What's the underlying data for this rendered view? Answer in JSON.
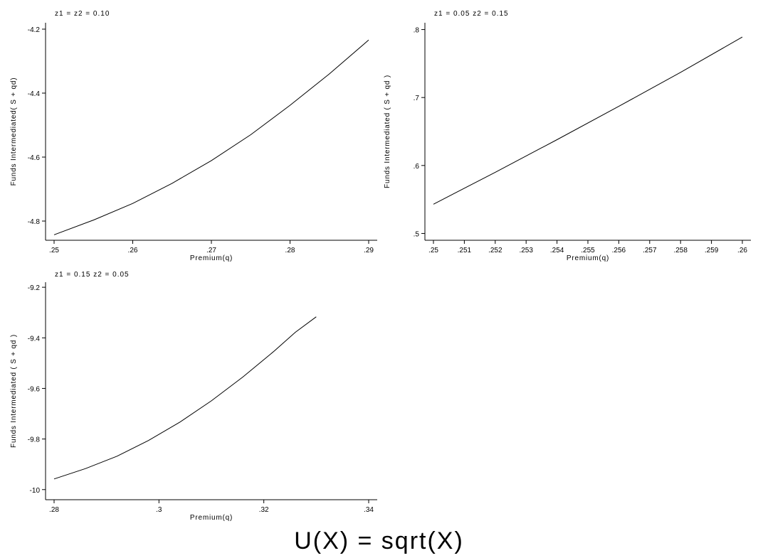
{
  "caption": "U(X) = sqrt(X)",
  "chart_data": [
    {
      "type": "line",
      "title": "z1 =  z2 = 0.10",
      "xlabel": "Premium(q)",
      "ylabel": "Funds Intermediated( S + qd)",
      "xlim": [
        0.25,
        0.29
      ],
      "ylim": [
        -4.86,
        -4.18
      ],
      "xticks": [
        0.25,
        0.26,
        0.27,
        0.28,
        0.29
      ],
      "xtick_labels": [
        ".25",
        ".26",
        ".27",
        ".28",
        ".29"
      ],
      "yticks": [
        -4.8,
        -4.6,
        -4.4,
        -4.2
      ],
      "ytick_labels": [
        "-4.8",
        "-4.6",
        "-4.4",
        "-4.2"
      ],
      "grid": false,
      "x": [
        0.25,
        0.255,
        0.26,
        0.265,
        0.27,
        0.275,
        0.28,
        0.285,
        0.29
      ],
      "y": [
        -4.843,
        -4.797,
        -4.745,
        -4.682,
        -4.611,
        -4.53,
        -4.438,
        -4.34,
        -4.234
      ]
    },
    {
      "type": "line",
      "title": "z1 = 0.05  z2 = 0.15",
      "xlabel": "Premium(q)",
      "ylabel": "Funds Intermediated ( S + qd )",
      "xlim": [
        0.25,
        0.26
      ],
      "ylim": [
        0.49,
        0.81
      ],
      "xticks": [
        0.25,
        0.251,
        0.252,
        0.253,
        0.254,
        0.255,
        0.256,
        0.257,
        0.258,
        0.259,
        0.26
      ],
      "xtick_labels": [
        ".25",
        ".251",
        ".252",
        ".253",
        ".254",
        ".255",
        ".256",
        ".257",
        ".258",
        ".259",
        ".26"
      ],
      "yticks": [
        0.5,
        0.6,
        0.7,
        0.8
      ],
      "ytick_labels": [
        ".5",
        ".6",
        ".7",
        ".8"
      ],
      "grid": false,
      "x": [
        0.25,
        0.252,
        0.254,
        0.256,
        0.258,
        0.26
      ],
      "y": [
        0.543,
        0.59,
        0.638,
        0.687,
        0.737,
        0.789
      ]
    },
    {
      "type": "line",
      "title": "z1 = 0.15  z2 = 0.05",
      "xlabel": "Premium(q)",
      "ylabel": "Funds Intermediated ( S + qd )",
      "xlim": [
        0.28,
        0.34
      ],
      "ylim": [
        -10.04,
        -9.18
      ],
      "xticks": [
        0.28,
        0.3,
        0.32,
        0.34
      ],
      "xtick_labels": [
        ".28",
        ".3",
        ".32",
        ".34"
      ],
      "yticks": [
        -10,
        -9.8,
        -9.6,
        -9.4,
        -9.2
      ],
      "ytick_labels": [
        "-10",
        "-9.8",
        "-9.6",
        "-9.4",
        "-9.2"
      ],
      "grid": false,
      "x": [
        0.28,
        0.286,
        0.292,
        0.298,
        0.304,
        0.31,
        0.316,
        0.322,
        0.326,
        0.33
      ],
      "y": [
        -9.958,
        -9.917,
        -9.868,
        -9.806,
        -9.733,
        -9.649,
        -9.555,
        -9.452,
        -9.378,
        -9.317
      ]
    }
  ]
}
